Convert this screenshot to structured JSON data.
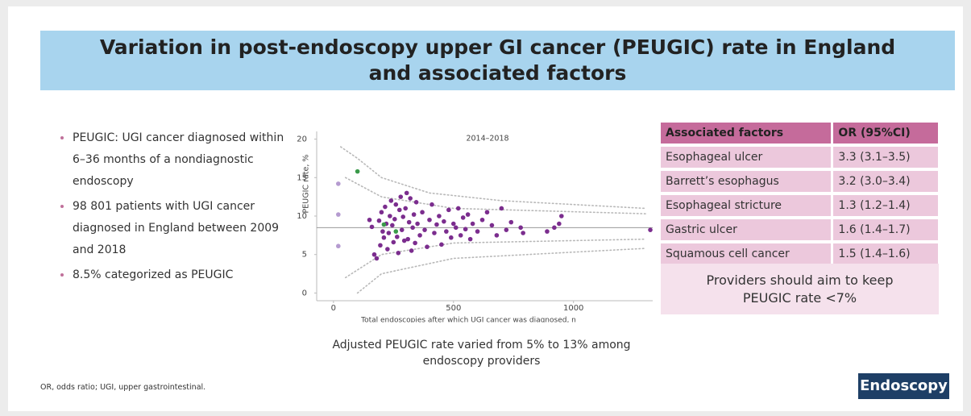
{
  "header": {
    "title": "Variation in post-endoscopy upper GI cancer (PEUGIC) rate in England and associated factors"
  },
  "bullets": [
    "PEUGIC: UGI cancer diagnosed within 6–36 months of a nondiagnostic endoscopy",
    "98 801 patients with UGI cancer diagnosed in England between 2009 and 2018",
    "8.5% categorized as PEUGIC"
  ],
  "chart_data": {
    "type": "scatter",
    "title": "2014–2018",
    "x_label": "Total endoscopies after which UGI cancer was diagnosed, n",
    "y_label": "PEUGIC rate, %",
    "xlim": [
      -70,
      1330
    ],
    "ylim": [
      -1,
      21
    ],
    "xticks": [
      0,
      500,
      1000
    ],
    "yticks": [
      0,
      5,
      10,
      15,
      20
    ],
    "hline": 8.5,
    "series": [
      {
        "style": "points",
        "color": "#7b2d8e",
        "x": [
          150,
          160,
          170,
          180,
          190,
          195,
          200,
          205,
          210,
          215,
          220,
          225,
          230,
          235,
          240,
          245,
          250,
          255,
          260,
          265,
          270,
          275,
          280,
          285,
          290,
          295,
          300,
          305,
          310,
          315,
          320,
          325,
          330,
          335,
          340,
          345,
          350,
          360,
          370,
          380,
          390,
          400,
          410,
          420,
          430,
          440,
          450,
          460,
          470,
          480,
          490,
          500,
          510,
          520,
          530,
          540,
          550,
          560,
          570,
          580,
          600,
          620,
          640,
          660,
          680,
          700,
          720,
          740,
          780,
          790,
          890,
          920,
          940,
          950,
          1320
        ],
        "values": [
          9.5,
          8.6,
          5.0,
          4.5,
          9.4,
          6.2,
          10.5,
          8.0,
          7.2,
          11.2,
          9.0,
          5.7,
          7.8,
          10.0,
          12.0,
          8.8,
          6.6,
          9.6,
          11.5,
          7.3,
          5.2,
          10.8,
          12.5,
          8.2,
          9.9,
          6.8,
          11.0,
          13.0,
          7.0,
          9.2,
          12.3,
          5.5,
          8.5,
          10.2,
          6.5,
          11.8,
          9.0,
          7.5,
          10.5,
          8.2,
          6.0,
          9.5,
          11.5,
          7.8,
          8.9,
          10.0,
          6.3,
          9.3,
          8.0,
          10.8,
          7.2,
          9.0,
          8.5,
          11.0,
          7.5,
          9.8,
          8.3,
          10.2,
          7.0,
          9.0,
          8.0,
          9.5,
          10.5,
          8.8,
          7.5,
          11.0,
          8.2,
          9.2,
          8.5,
          7.8,
          8.0,
          8.5,
          9.0,
          10.0,
          8.2
        ]
      },
      {
        "style": "points",
        "color": "#3a9a4a",
        "x": [
          100,
          210,
          260
        ],
        "values": [
          15.8,
          8.9,
          8.0
        ]
      },
      {
        "style": "points",
        "color": "#b59bd0",
        "x": [
          20,
          20,
          20
        ],
        "values": [
          14.2,
          10.2,
          6.1
        ]
      },
      {
        "style": "dotted",
        "color": "#b8b8b8",
        "x": [
          30,
          100,
          200,
          400,
          700,
          1300
        ],
        "values": [
          19,
          17.5,
          15,
          13,
          12,
          11
        ]
      },
      {
        "style": "dotted",
        "color": "#b8b8b8",
        "x": [
          50,
          200,
          500,
          1300
        ],
        "values": [
          15,
          12.5,
          11,
          10.3
        ]
      },
      {
        "style": "dotted",
        "color": "#b8b8b8",
        "x": [
          50,
          200,
          500,
          1300
        ],
        "values": [
          2,
          5,
          6.5,
          7
        ]
      },
      {
        "style": "dotted",
        "color": "#b8b8b8",
        "x": [
          100,
          200,
          500,
          1300
        ],
        "values": [
          0,
          2.5,
          4.5,
          5.8
        ]
      }
    ]
  },
  "chart_caption": "Adjusted PEUGIC rate varied from 5% to 13% among endoscopy providers",
  "table": {
    "columns": [
      "Associated factors",
      "OR (95%CI)"
    ],
    "rows": [
      [
        "Esophageal ulcer",
        "3.3 (3.1–3.5)"
      ],
      [
        "Barrett’s esophagus",
        "3.2 (3.0–3.4)"
      ],
      [
        "Esophageal stricture",
        "1.3 (1.2–1.4)"
      ],
      [
        "Gastric ulcer",
        "1.6 (1.4–1.7)"
      ],
      [
        "Squamous cell cancer",
        "1.5 (1.4–1.6)"
      ]
    ]
  },
  "callout": "Providers should aim to keep PEUGIC rate <7%",
  "footnote": "OR, odds ratio; UGI, upper gastrointestinal.",
  "logo": "Endoscopy"
}
